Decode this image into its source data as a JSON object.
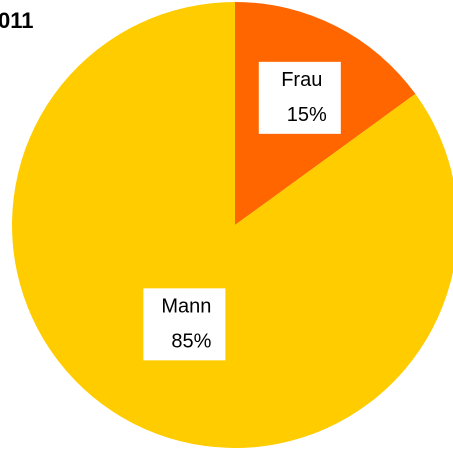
{
  "chart_data": {
    "type": "pie",
    "title": "011",
    "categories": [
      "Frau",
      "Mann"
    ],
    "values": [
      15,
      85
    ],
    "value_labels": [
      "15%",
      "85%"
    ],
    "colors": [
      "#ff6600",
      "#ffcc00"
    ]
  }
}
